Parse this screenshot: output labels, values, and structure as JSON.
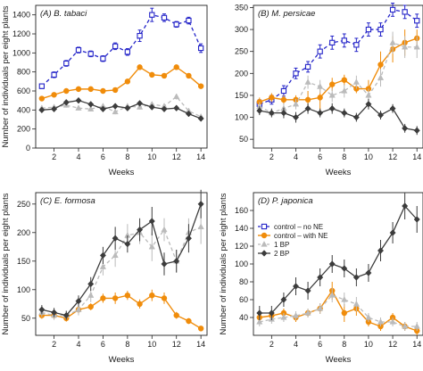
{
  "figure": {
    "ylabel": "Number of individuals per eight plants",
    "xlabel": "Weeks"
  },
  "series_styles": [
    {
      "key": "no_ne",
      "color": "#2323c8",
      "dash": "4,3",
      "marker": "open-square",
      "width": 1.3
    },
    {
      "key": "with_ne",
      "color": "#f08c0a",
      "dash": "",
      "marker": "filled-circle",
      "width": 1.4
    },
    {
      "key": "bp1",
      "color": "#bbbbbb",
      "dash": "4,3",
      "marker": "triangle",
      "width": 1.3
    },
    {
      "key": "bp2",
      "color": "#3c3c3c",
      "dash": "",
      "marker": "filled-diamond",
      "width": 1.3
    }
  ],
  "legend": {
    "items": [
      {
        "key": "no_ne",
        "label": "control – no NE"
      },
      {
        "key": "with_ne",
        "label": "control – with NE"
      },
      {
        "key": "bp1",
        "label": "1 BP"
      },
      {
        "key": "bp2",
        "label": "2 BP"
      }
    ]
  },
  "chart_data": [
    {
      "type": "line",
      "title": "(A) B. tabaci",
      "xlabel": "Weeks",
      "ylabel": "Number of individuals per eight plants",
      "xlim": [
        0.5,
        14.5
      ],
      "ylim": [
        0,
        1500
      ],
      "xticks": [
        2,
        4,
        6,
        8,
        10,
        12,
        14
      ],
      "yticks": [
        0,
        200,
        400,
        600,
        800,
        1000,
        1200,
        1400
      ],
      "x": [
        1,
        2,
        3,
        4,
        5,
        6,
        7,
        8,
        9,
        10,
        11,
        12,
        13,
        14
      ],
      "series": [
        {
          "key": "no_ne",
          "name": "control – no NE",
          "values": [
            650,
            770,
            890,
            1030,
            990,
            940,
            1070,
            1010,
            1180,
            1400,
            1370,
            1300,
            1340,
            1050
          ],
          "err": [
            25,
            30,
            30,
            30,
            30,
            30,
            35,
            35,
            60,
            70,
            40,
            30,
            35,
            45
          ]
        },
        {
          "key": "with_ne",
          "name": "control – with NE",
          "values": [
            520,
            560,
            600,
            620,
            620,
            600,
            610,
            700,
            850,
            770,
            760,
            850,
            760,
            650
          ],
          "err": [
            15,
            15,
            15,
            15,
            15,
            15,
            15,
            20,
            25,
            20,
            20,
            20,
            20,
            20
          ]
        },
        {
          "key": "bp1",
          "name": "1 BP",
          "values": [
            420,
            430,
            450,
            420,
            410,
            440,
            380,
            440,
            430,
            460,
            440,
            540,
            390,
            330
          ],
          "err": [
            20,
            20,
            25,
            25,
            25,
            25,
            25,
            25,
            25,
            25,
            25,
            30,
            25,
            25
          ]
        },
        {
          "key": "bp2",
          "name": "2 BP",
          "values": [
            400,
            410,
            480,
            500,
            460,
            410,
            440,
            420,
            470,
            430,
            410,
            420,
            360,
            310
          ],
          "err": [
            20,
            25,
            30,
            30,
            30,
            25,
            25,
            25,
            25,
            25,
            25,
            25,
            30,
            25
          ]
        }
      ]
    },
    {
      "type": "line",
      "title": "(B) M. persicae",
      "xlabel": "Weeks",
      "ylabel": "",
      "xlim": [
        0.5,
        14.5
      ],
      "ylim": [
        30,
        355
      ],
      "xticks": [
        2,
        4,
        6,
        8,
        10,
        12,
        14
      ],
      "yticks": [
        50,
        100,
        150,
        200,
        250,
        300,
        350
      ],
      "x": [
        1,
        2,
        3,
        4,
        5,
        6,
        7,
        8,
        9,
        10,
        11,
        12,
        13,
        14
      ],
      "series": [
        {
          "key": "no_ne",
          "name": "control – no NE",
          "values": [
            130,
            140,
            160,
            200,
            215,
            250,
            270,
            275,
            265,
            300,
            300,
            345,
            340,
            320
          ],
          "err": [
            10,
            10,
            12,
            12,
            12,
            15,
            15,
            15,
            15,
            15,
            15,
            15,
            15,
            15
          ]
        },
        {
          "key": "with_ne",
          "name": "control – with NE",
          "values": [
            135,
            145,
            140,
            140,
            140,
            145,
            175,
            185,
            165,
            165,
            220,
            255,
            270,
            280
          ],
          "err": [
            10,
            10,
            10,
            10,
            20,
            30,
            15,
            12,
            10,
            20,
            30,
            30,
            30,
            20
          ]
        },
        {
          "key": "bp1",
          "name": "1 BP",
          "values": [
            125,
            110,
            120,
            130,
            180,
            170,
            150,
            160,
            180,
            150,
            190,
            270,
            260,
            260
          ],
          "err": [
            10,
            10,
            12,
            12,
            15,
            15,
            15,
            15,
            15,
            15,
            20,
            25,
            25,
            25
          ]
        },
        {
          "key": "bp2",
          "name": "2 BP",
          "values": [
            115,
            110,
            110,
            100,
            120,
            110,
            120,
            110,
            100,
            130,
            105,
            120,
            75,
            70
          ],
          "err": [
            10,
            10,
            12,
            12,
            12,
            10,
            12,
            10,
            10,
            12,
            10,
            10,
            10,
            10
          ]
        }
      ]
    },
    {
      "type": "line",
      "title": "(C) E. formosa",
      "xlabel": "Weeks",
      "ylabel": "Number of individuals per eight plants",
      "xlim": [
        0.5,
        14.5
      ],
      "ylim": [
        20,
        270
      ],
      "xticks": [
        2,
        4,
        6,
        8,
        10,
        12,
        14
      ],
      "yticks": [
        50,
        100,
        150,
        200,
        250
      ],
      "x": [
        1,
        2,
        3,
        4,
        5,
        6,
        7,
        8,
        9,
        10,
        11,
        12,
        13,
        14
      ],
      "series": [
        {
          "key": "with_ne",
          "name": "control – with NE",
          "values": [
            55,
            55,
            50,
            65,
            70,
            85,
            85,
            90,
            75,
            90,
            85,
            55,
            45,
            32
          ],
          "err": [
            6,
            6,
            6,
            6,
            6,
            8,
            10,
            8,
            8,
            10,
            10,
            6,
            5,
            4
          ]
        },
        {
          "key": "bp1",
          "name": "1 BP",
          "values": [
            60,
            55,
            55,
            65,
            90,
            140,
            160,
            195,
            200,
            175,
            205,
            150,
            200,
            210
          ],
          "err": [
            8,
            8,
            8,
            10,
            12,
            15,
            20,
            20,
            20,
            25,
            20,
            20,
            25,
            30
          ]
        },
        {
          "key": "bp2",
          "name": "2 BP",
          "values": [
            65,
            60,
            55,
            80,
            110,
            160,
            190,
            180,
            205,
            220,
            145,
            150,
            190,
            250
          ],
          "err": [
            8,
            8,
            8,
            10,
            12,
            15,
            20,
            15,
            20,
            25,
            20,
            20,
            25,
            25
          ]
        }
      ]
    },
    {
      "type": "line",
      "title": "(D) P. japonica",
      "xlabel": "Weeks",
      "ylabel": "Number of individuals per eight plants",
      "xlim": [
        0.5,
        14.5
      ],
      "ylim": [
        20,
        180
      ],
      "xticks": [
        2,
        4,
        6,
        8,
        10,
        12,
        14
      ],
      "yticks": [
        40,
        60,
        80,
        100,
        120,
        140,
        160
      ],
      "x": [
        1,
        2,
        3,
        4,
        5,
        6,
        7,
        8,
        9,
        10,
        11,
        12,
        13,
        14
      ],
      "series": [
        {
          "key": "with_ne",
          "name": "control – with NE",
          "values": [
            40,
            42,
            45,
            40,
            45,
            50,
            70,
            45,
            50,
            35,
            30,
            40,
            30,
            25
          ],
          "err": [
            5,
            5,
            5,
            5,
            5,
            6,
            10,
            10,
            8,
            5,
            5,
            5,
            5,
            5
          ]
        },
        {
          "key": "bp1",
          "name": "1 BP",
          "values": [
            35,
            38,
            40,
            42,
            45,
            50,
            65,
            60,
            55,
            40,
            35,
            35,
            30,
            30
          ],
          "err": [
            5,
            5,
            5,
            5,
            5,
            6,
            8,
            8,
            8,
            5,
            5,
            5,
            5,
            5
          ]
        },
        {
          "key": "bp2",
          "name": "2 BP",
          "values": [
            45,
            45,
            60,
            75,
            70,
            85,
            100,
            95,
            85,
            90,
            115,
            135,
            165,
            150
          ],
          "err": [
            8,
            8,
            8,
            10,
            10,
            10,
            10,
            10,
            10,
            10,
            12,
            12,
            15,
            15
          ]
        }
      ]
    }
  ]
}
